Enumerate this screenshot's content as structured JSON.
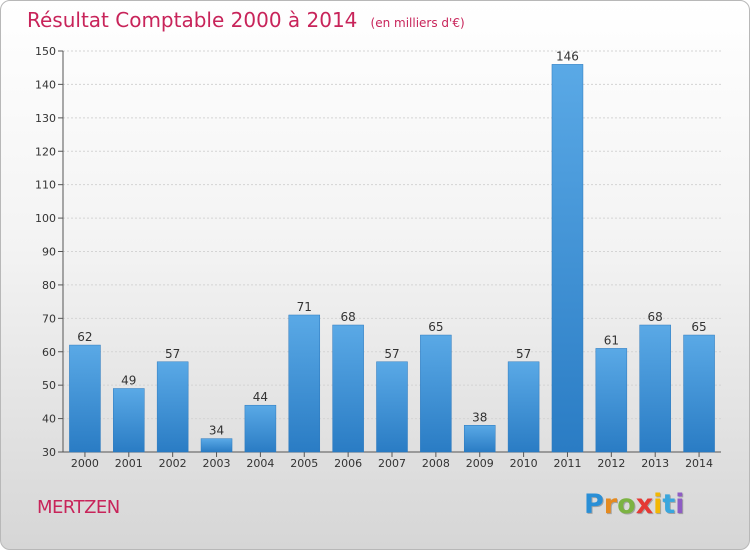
{
  "chart_data": {
    "type": "bar",
    "title": "Résultat Comptable 2000 à 2014",
    "subtitle": "(en milliers d'€)",
    "categories": [
      "2000",
      "2001",
      "2002",
      "2003",
      "2004",
      "2005",
      "2006",
      "2007",
      "2008",
      "2009",
      "2010",
      "2011",
      "2012",
      "2013",
      "2014"
    ],
    "values": [
      62,
      49,
      57,
      34,
      44,
      71,
      68,
      57,
      65,
      38,
      57,
      146,
      61,
      68,
      65
    ],
    "ylim": [
      30,
      150
    ],
    "yticks": [
      30,
      40,
      50,
      60,
      70,
      80,
      90,
      100,
      110,
      120,
      130,
      140,
      150
    ],
    "xlabel": "",
    "ylabel": "",
    "grid": true,
    "colors": {
      "bar": "#4f9fe0",
      "bar_dark": "#2d7fc7",
      "title": "#c8245a"
    }
  },
  "footer": {
    "commune": "MERTZEN",
    "brand_letters": [
      "P",
      "r",
      "o",
      "x",
      "i",
      "t",
      "i"
    ],
    "brand_colors": [
      "#2a8fd6",
      "#e58a1f",
      "#7cb342",
      "#e53935",
      "#f2b705",
      "#3aa6dd",
      "#8e5cc4"
    ]
  }
}
